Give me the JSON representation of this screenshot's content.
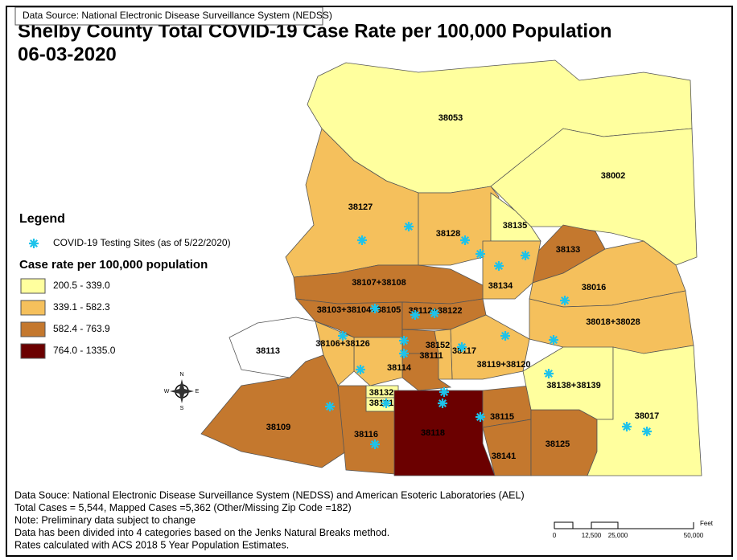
{
  "source_box": "Data Source: National Electronic Disease Surveillance System (NEDSS)",
  "title": "Shelby County Total COVID-19 Case Rate per 100,000 Population",
  "date": "06-03-2020",
  "legend": {
    "title": "Legend",
    "sites_label": "COVID-19 Testing Sites (as of 5/22/2020)",
    "rate_title": "Case rate per 100,000 population",
    "classes": [
      {
        "label": "200.5 - 339.0",
        "color": "#ffff9e"
      },
      {
        "label": "339.1 - 582.3",
        "color": "#f5c05c"
      },
      {
        "label": "582.4 - 763.9",
        "color": "#c4782e"
      },
      {
        "label": "764.0 - 1335.0",
        "color": "#6b0000"
      }
    ]
  },
  "regions": [
    {
      "label": "38053",
      "fill": "#ffff9e"
    },
    {
      "label": "38002",
      "fill": "#ffff9e"
    },
    {
      "label": "38127",
      "fill": "#f5c05c"
    },
    {
      "label": "38128",
      "fill": "#f5c05c"
    },
    {
      "label": "38135",
      "fill": "#ffff9e"
    },
    {
      "label": "38133",
      "fill": "#c4782e"
    },
    {
      "label": "38134",
      "fill": "#f5c05c"
    },
    {
      "label": "38016",
      "fill": "#f5c05c"
    },
    {
      "label": "38018+38028",
      "fill": "#f5c05c"
    },
    {
      "label": "38107+38108",
      "fill": "#c4782e"
    },
    {
      "label": "38103+38104+38105",
      "fill": "#c4782e"
    },
    {
      "label": "38112+38122",
      "fill": "#c4782e"
    },
    {
      "label": "38119+38120",
      "fill": "#f5c05c"
    },
    {
      "label": "38117",
      "fill": "#f5c05c"
    },
    {
      "label": "38152",
      "fill": "#c4782e"
    },
    {
      "label": "38111",
      "fill": "#c4782e"
    },
    {
      "label": "38114",
      "fill": "#f5c05c"
    },
    {
      "label": "38106+38126",
      "fill": "#f5c05c"
    },
    {
      "label": "38113",
      "fill": "#ffffff"
    },
    {
      "label": "38109",
      "fill": "#c4782e"
    },
    {
      "label": "38132",
      "fill": "#ffff9e"
    },
    {
      "label": "38131",
      "fill": "#ffff9e"
    },
    {
      "label": "38116",
      "fill": "#c4782e"
    },
    {
      "label": "38118",
      "fill": "#6b0000"
    },
    {
      "label": "38115",
      "fill": "#c4782e"
    },
    {
      "label": "38141",
      "fill": "#c4782e"
    },
    {
      "label": "38125",
      "fill": "#c4782e"
    },
    {
      "label": "38138+38139",
      "fill": "#ffff9e"
    },
    {
      "label": "38017",
      "fill": "#ffff9e"
    }
  ],
  "compass": [
    "N",
    "E",
    "S",
    "W"
  ],
  "notes": [
    "Data Souce: National Electronic Disease Surveillance System (NEDSS) and American Esoteric Laboratories (AEL)",
    "Total Cases = 5,544, Mapped Cases =5,362  (Other/Missing Zip Code =182)",
    "Note: Preliminary data subject to change",
    "Data has been divided into 4 categories based on the Jenks Natural Breaks method.",
    "Rates calculated with ACS 2018 5 Year Population Estimates."
  ],
  "scale": {
    "unit": "Feet",
    "ticks": [
      "0",
      "12,500",
      "25,000",
      "50,000"
    ]
  }
}
